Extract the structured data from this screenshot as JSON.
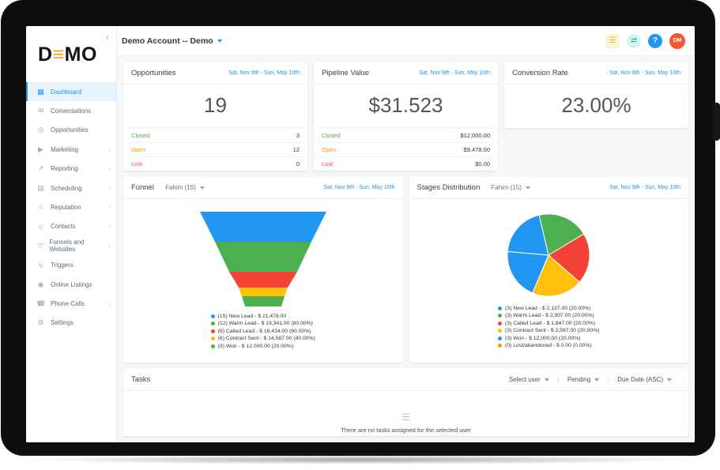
{
  "colors": {
    "primary": "#2196f3",
    "green": "#4caf50",
    "orange": "#ff9800",
    "red": "#f44336",
    "yellow": "#ffc107",
    "teal": "#2bb3a3",
    "logo_orange": "#f5a623",
    "avatar_bg": "#f0582f"
  },
  "ui": {
    "chevron_right": "›",
    "collapse_icon": "‹"
  },
  "sidebar": {
    "logo": {
      "part1": "D",
      "mark": "≡",
      "part2": "MO"
    },
    "items": [
      {
        "label": "Dashboard",
        "glyph": "▦",
        "active": true,
        "chevron": false
      },
      {
        "label": "Conversations",
        "glyph": "✉",
        "active": false,
        "chevron": false
      },
      {
        "label": "Opportunities",
        "glyph": "◎",
        "active": false,
        "chevron": false
      },
      {
        "label": "Marketing",
        "glyph": "▶",
        "active": false,
        "chevron": true
      },
      {
        "label": "Reporting",
        "glyph": "↗",
        "active": false,
        "chevron": true
      },
      {
        "label": "Scheduling",
        "glyph": "▤",
        "active": false,
        "chevron": true
      },
      {
        "label": "Reputation",
        "glyph": "☆",
        "active": false,
        "chevron": true
      },
      {
        "label": "Contacts",
        "glyph": "☺",
        "active": false,
        "chevron": true
      },
      {
        "label": "Funnels and Websites",
        "glyph": "▽",
        "active": false,
        "chevron": true
      },
      {
        "label": "Triggers",
        "glyph": "ϟ",
        "active": false,
        "chevron": false
      },
      {
        "label": "Online Listings",
        "glyph": "◉",
        "active": false,
        "chevron": false
      },
      {
        "label": "Phone Calls",
        "glyph": "☎",
        "active": false,
        "chevron": true
      },
      {
        "label": "Settings",
        "glyph": "⚙",
        "active": false,
        "chevron": false
      }
    ]
  },
  "header": {
    "account_name": "Demo Account -- Demo",
    "avatar_initials": "DM",
    "help_glyph": "?",
    "switch_glyph": "⇄",
    "menu_glyph": "☰"
  },
  "date_range": "Sat, Nov 9th - Sun, May 10th",
  "cards": {
    "opportunities": {
      "title": "Opportunities",
      "value": "19",
      "rows": [
        {
          "label": "Closed",
          "value": "3",
          "color": "#4caf50"
        },
        {
          "label": "Open",
          "value": "12",
          "color": "#ff9800"
        },
        {
          "label": "Lost",
          "value": "0",
          "color": "#f44336"
        }
      ]
    },
    "pipeline": {
      "title": "Pipeline Value",
      "value": "$31.523",
      "rows": [
        {
          "label": "Closed",
          "value": "$12,000.00",
          "color": "#4caf50"
        },
        {
          "label": "Open",
          "value": "$9,478.00",
          "color": "#ff9800"
        },
        {
          "label": "Lost",
          "value": "$0.00",
          "color": "#f44336"
        }
      ]
    },
    "conversion": {
      "title": "Conversion Rate",
      "value": "23.00%"
    }
  },
  "funnel_card": {
    "title": "Funnel",
    "user": "Fahim (15)",
    "legend": [
      {
        "text": "(15) New Lead - $ 21,478.00",
        "color": "#2196f3"
      },
      {
        "text": "(12) Warm Lead - $ 19,341.00 (80.00%)",
        "color": "#4caf50"
      },
      {
        "text": "(9) Called Lead - $ 16,434.00 (60.00%)",
        "color": "#f44336"
      },
      {
        "text": "(6) Contract Sent - $ 14,587.00 (40.00%)",
        "color": "#ffc107"
      },
      {
        "text": "(3) Won - $ 12,000.00 (20.00%)",
        "color": "#4caf50"
      }
    ]
  },
  "stages_card": {
    "title": "Stages Distribution",
    "user": "Fahim (15)",
    "legend": [
      {
        "text": "(3) New Lead - $ 2,137.00 (20.00%)",
        "color": "#2196f3"
      },
      {
        "text": "(3) Warm Lead - $ 2,907.00 (20.00%)",
        "color": "#4caf50"
      },
      {
        "text": "(3) Called Lead - $ 1,847.00 (20.00%)",
        "color": "#f44336"
      },
      {
        "text": "(3) Contract Sent - $ 2,587.00 (20.00%)",
        "color": "#ffc107"
      },
      {
        "text": "(3) Won - $ 12,000.00 (20.00%)",
        "color": "#2196f3"
      },
      {
        "text": "(0) Lost/abandoned - $ 0.00 (0.00%)",
        "color": "#ff9800"
      }
    ]
  },
  "tasks": {
    "title": "Tasks",
    "filters": [
      {
        "label": "Select user"
      },
      {
        "label": "Pending"
      },
      {
        "label": "Due Date (ASC)"
      }
    ],
    "empty_icon": "☰",
    "empty_text": "There are no tasks assigned for the selected user"
  },
  "chart_data": [
    {
      "type": "funnel",
      "title": "Funnel",
      "categories": [
        "New Lead",
        "Warm Lead",
        "Called Lead",
        "Contract Sent",
        "Won"
      ],
      "counts": [
        15,
        12,
        9,
        6,
        3
      ],
      "amounts": [
        21478.0,
        19341.0,
        16434.0,
        14587.0,
        12000.0
      ],
      "percents": [
        100,
        80,
        60,
        40,
        20
      ],
      "palette": [
        "#2196f3",
        "#4caf50",
        "#f44336",
        "#ffc107",
        "#4caf50"
      ],
      "layout": {
        "widths": [
          160,
          122,
          86,
          62,
          54,
          46
        ],
        "heights": [
          38,
          38,
          20,
          11,
          13
        ]
      }
    },
    {
      "type": "pie",
      "title": "Stages Distribution",
      "categories": [
        "New Lead",
        "Warm Lead",
        "Called Lead",
        "Contract Sent",
        "Won",
        "Lost/abandoned"
      ],
      "counts": [
        3,
        3,
        3,
        3,
        3,
        0
      ],
      "amounts": [
        2137.0,
        2907.0,
        1847.0,
        2587.0,
        12000.0,
        0.0
      ],
      "percents": [
        20,
        20,
        20,
        20,
        20,
        0
      ],
      "palette": [
        "#2196f3",
        "#4caf50",
        "#f44336",
        "#ffc107",
        "#2196f3",
        "#ff9800"
      ],
      "layout": {
        "start_angle_deg": -85
      }
    }
  ]
}
